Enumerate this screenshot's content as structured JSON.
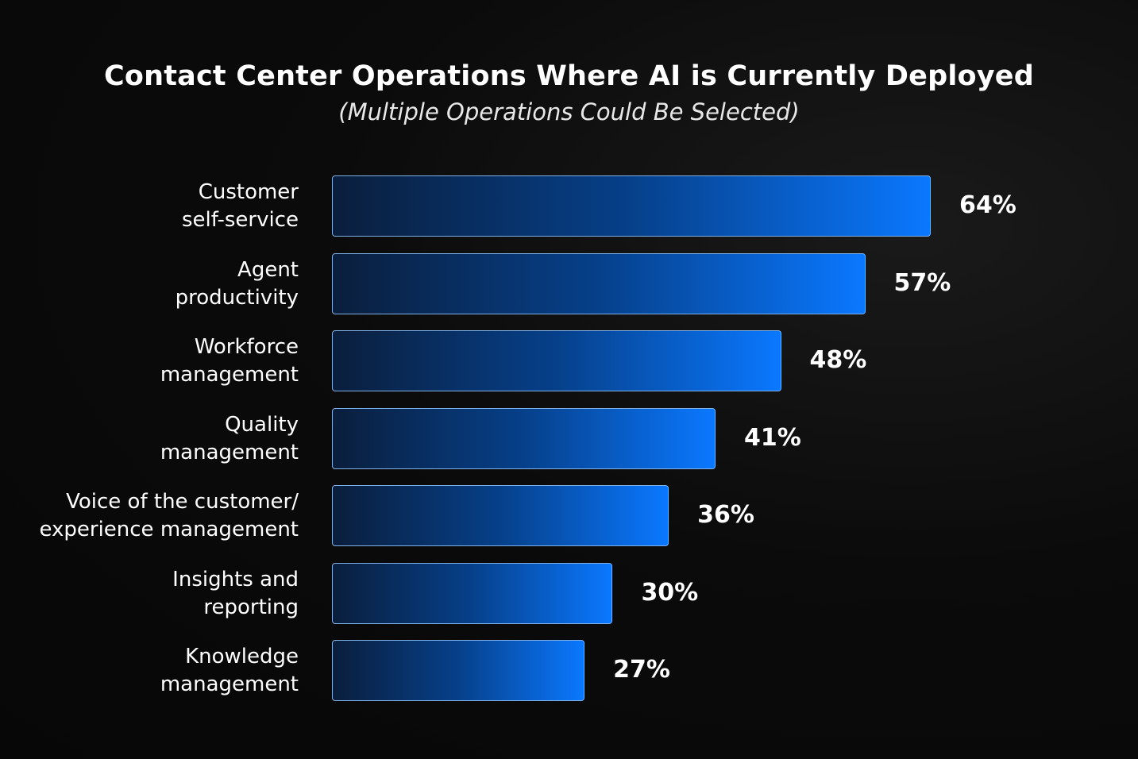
{
  "chart_data": {
    "type": "bar",
    "orientation": "horizontal",
    "title": "Contact Center Operations Where AI is Currently Deployed",
    "subtitle": "(Multiple Operations Could Be Selected)",
    "categories": [
      [
        "Customer",
        "self-service"
      ],
      [
        "Agent",
        "productivity"
      ],
      [
        "Workforce",
        "management"
      ],
      [
        "Quality",
        "management"
      ],
      [
        "Voice of the customer/",
        "experience management"
      ],
      [
        "Insights and",
        "reporting"
      ],
      [
        "Knowledge",
        "management"
      ]
    ],
    "values": [
      64,
      57,
      48,
      41,
      36,
      30,
      27
    ],
    "value_labels": [
      "64%",
      "57%",
      "48%",
      "41%",
      "36%",
      "30%",
      "27%"
    ],
    "unit": "%",
    "grid": false,
    "colors": {
      "bar_start": "#0a1e3c",
      "bar_end": "#0a78ff",
      "bar_border": "#7fb0e8",
      "background": "#0b0b0b"
    }
  }
}
